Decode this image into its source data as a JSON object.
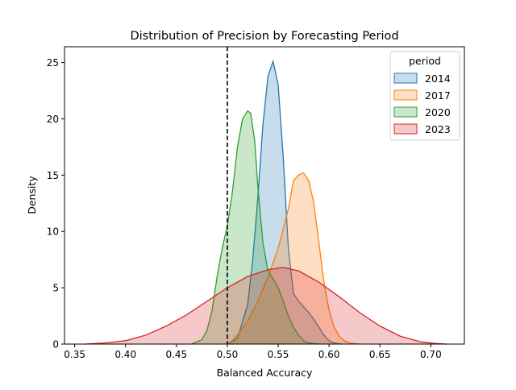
{
  "chart_data": {
    "type": "area",
    "title": "Distribution of Precision by Forecasting Period",
    "xlabel": "Balanced Accuracy",
    "ylabel": "Density",
    "xlim": [
      0.34,
      0.733
    ],
    "ylim": [
      0,
      26.4
    ],
    "xticks": [
      0.35,
      0.4,
      0.45,
      0.5,
      0.55,
      0.6,
      0.65,
      0.7
    ],
    "xtick_labels": [
      "0.35",
      "0.40",
      "0.45",
      "0.50",
      "0.55",
      "0.60",
      "0.65",
      "0.70"
    ],
    "yticks": [
      0,
      5,
      10,
      15,
      20,
      25
    ],
    "ytick_labels": [
      "0",
      "5",
      "10",
      "15",
      "20",
      "25"
    ],
    "grid": false,
    "legend": {
      "title": "period",
      "placement": "upper right"
    },
    "reference_line": {
      "x": 0.5,
      "style": "dashed",
      "color": "#000000"
    },
    "series": [
      {
        "name": "2014",
        "color": "#1f77b4",
        "x": [
          0.5,
          0.51,
          0.52,
          0.525,
          0.53,
          0.535,
          0.54,
          0.545,
          0.55,
          0.555,
          0.56,
          0.565,
          0.57,
          0.575,
          0.58,
          0.585,
          0.59,
          0.595,
          0.6,
          0.605,
          0.612
        ],
        "values": [
          0.0,
          0.5,
          3.5,
          7.5,
          13.0,
          19.5,
          23.8,
          25.1,
          23.0,
          16.5,
          8.5,
          4.5,
          3.8,
          3.3,
          2.8,
          2.2,
          1.5,
          0.8,
          0.3,
          0.1,
          0.0
        ]
      },
      {
        "name": "2017",
        "color": "#ff7f0e",
        "x": [
          0.5,
          0.505,
          0.51,
          0.52,
          0.53,
          0.54,
          0.55,
          0.56,
          0.565,
          0.57,
          0.575,
          0.58,
          0.585,
          0.59,
          0.595,
          0.6,
          0.605,
          0.61,
          0.615,
          0.62,
          0.63
        ],
        "values": [
          0.0,
          0.3,
          0.8,
          2.0,
          3.8,
          6.0,
          8.5,
          12.0,
          14.5,
          15.0,
          15.2,
          14.5,
          12.5,
          9.0,
          5.5,
          3.0,
          1.5,
          0.7,
          0.3,
          0.1,
          0.0
        ]
      },
      {
        "name": "2020",
        "color": "#2ca02c",
        "x": [
          0.465,
          0.475,
          0.48,
          0.485,
          0.49,
          0.495,
          0.5,
          0.505,
          0.51,
          0.515,
          0.52,
          0.523,
          0.527,
          0.53,
          0.535,
          0.54,
          0.545,
          0.55,
          0.555,
          0.56,
          0.565,
          0.57,
          0.575,
          0.58,
          0.59
        ],
        "values": [
          0.0,
          0.4,
          1.2,
          3.0,
          6.0,
          8.5,
          10.5,
          13.5,
          17.5,
          20.0,
          20.7,
          20.5,
          18.0,
          14.0,
          9.0,
          6.5,
          5.8,
          5.0,
          3.8,
          2.5,
          1.5,
          0.8,
          0.3,
          0.1,
          0.0
        ]
      },
      {
        "name": "2023",
        "color": "#d62728",
        "x": [
          0.36,
          0.38,
          0.4,
          0.42,
          0.44,
          0.46,
          0.48,
          0.5,
          0.52,
          0.54,
          0.555,
          0.57,
          0.59,
          0.61,
          0.63,
          0.65,
          0.67,
          0.69,
          0.705,
          0.715
        ],
        "values": [
          0.0,
          0.1,
          0.3,
          0.8,
          1.6,
          2.6,
          3.8,
          5.0,
          6.0,
          6.6,
          6.8,
          6.5,
          5.5,
          4.2,
          2.8,
          1.6,
          0.7,
          0.2,
          0.05,
          0.0
        ]
      }
    ]
  }
}
